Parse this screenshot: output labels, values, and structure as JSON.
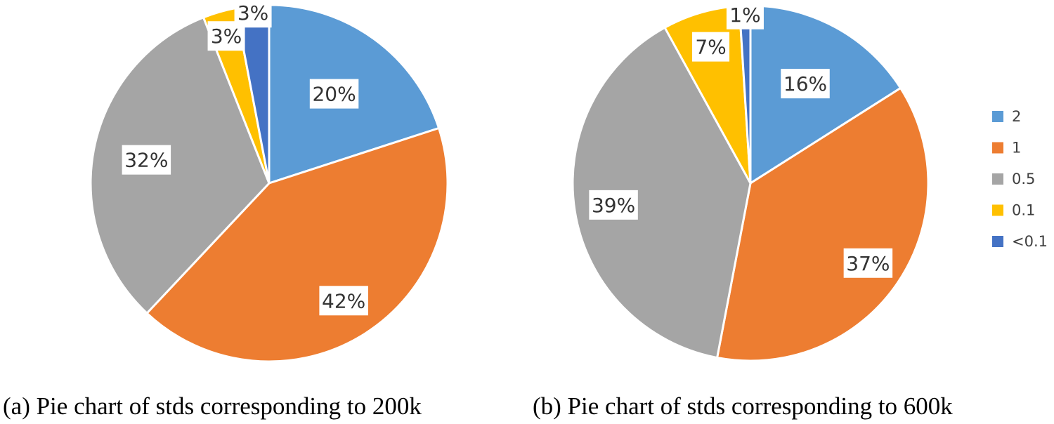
{
  "chart_data": [
    {
      "type": "pie",
      "categories": [
        "2",
        "1",
        "0.5",
        "0.1",
        "<0.1"
      ],
      "values": [
        20,
        42,
        32,
        3,
        3
      ],
      "labels": [
        "20%",
        "42%",
        "32%",
        "3%",
        "3%"
      ],
      "caption": "(a) Pie chart of stds corresponding to 200k",
      "start_angle_deg": 0,
      "direction": "clockwise"
    },
    {
      "type": "pie",
      "categories": [
        "2",
        "1",
        "0.5",
        "0.1",
        "<0.1"
      ],
      "values": [
        16,
        37,
        39,
        7,
        1
      ],
      "labels": [
        "16%",
        "37%",
        "39%",
        "7%",
        "1%"
      ],
      "caption": "(b) Pie chart of stds corresponding to 600k",
      "start_angle_deg": 0,
      "direction": "clockwise"
    }
  ],
  "legend": {
    "placement": "right",
    "entries": [
      "2",
      "1",
      "0.5",
      "0.1",
      "<0.1"
    ]
  },
  "colors": [
    "#5B9BD5",
    "#ED7D31",
    "#A5A5A5",
    "#FFC000",
    "#4472C4"
  ]
}
